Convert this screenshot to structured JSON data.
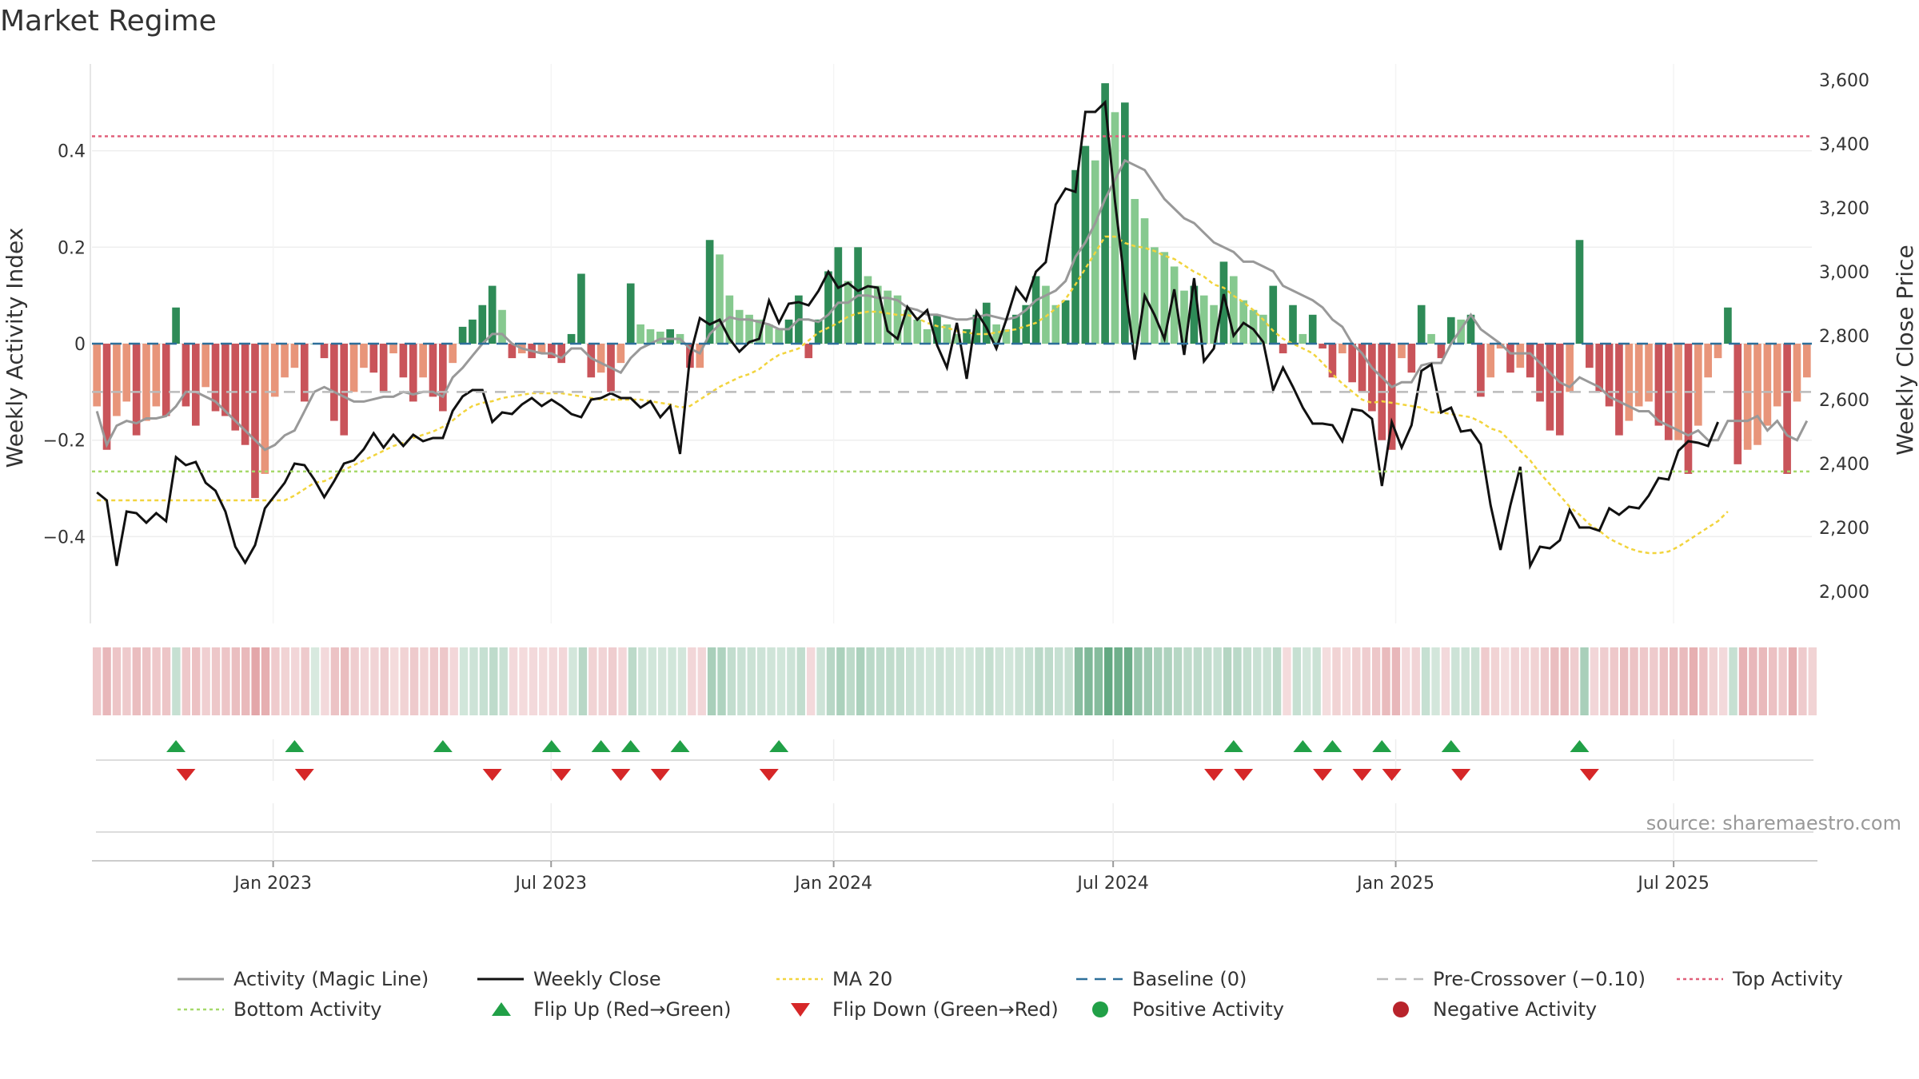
{
  "title": "Market Regime",
  "source": "source: sharemaestro.com",
  "colors": {
    "pos_dark": "#2e8b57",
    "pos_light": "#86c98f",
    "neg_dark": "#c9545a",
    "neg_light": "#e8957a",
    "magic": "#999999",
    "close": "#111111",
    "ma20": "#f2d43d",
    "baseline": "#2d6f9a",
    "pre": "#bbbbbb",
    "top": "#e0607a",
    "bottom": "#a6d96a",
    "flip_up": "#21a047",
    "flip_down": "#d62728"
  },
  "chart_data": {
    "type": "bar+line",
    "title": "Market Regime",
    "ylabel_left": "Weekly Activity Index",
    "ylabel_right": "Weekly Close Price",
    "ylim_left": [
      -0.58,
      0.58
    ],
    "ylim_right": [
      1900,
      3650
    ],
    "yticks_left": [
      {
        "v": 0.4,
        "label": "0.4"
      },
      {
        "v": 0.2,
        "label": "0.2"
      },
      {
        "v": 0,
        "label": "0"
      },
      {
        "v": -0.2,
        "label": "−0.2"
      },
      {
        "v": -0.4,
        "label": "−0.4"
      }
    ],
    "yticks_right": [
      {
        "v": 3600,
        "label": "3,600"
      },
      {
        "v": 3400,
        "label": "3,400"
      },
      {
        "v": 3200,
        "label": "3,200"
      },
      {
        "v": 3000,
        "label": "3,000"
      },
      {
        "v": 2800,
        "label": "2,800"
      },
      {
        "v": 2600,
        "label": "2,600"
      },
      {
        "v": 2400,
        "label": "2,400"
      },
      {
        "v": 2200,
        "label": "2,200"
      },
      {
        "v": 2000,
        "label": "2,000"
      }
    ],
    "x_start": "2022-09-05",
    "x_end": "2025-09-29",
    "xticks": [
      {
        "date": "2023-01-01",
        "label": "Jan 2023"
      },
      {
        "date": "2023-07-01",
        "label": "Jul 2023"
      },
      {
        "date": "2024-01-01",
        "label": "Jan 2024"
      },
      {
        "date": "2024-07-01",
        "label": "Jul 2024"
      },
      {
        "date": "2025-01-01",
        "label": "Jan 2025"
      },
      {
        "date": "2025-07-01",
        "label": "Jul 2025"
      }
    ],
    "reference_lines": {
      "top_activity": 0.43,
      "bottom_activity": -0.265,
      "pre_crossover": -0.1,
      "baseline": 0
    },
    "activity": [
      -0.13,
      -0.22,
      -0.15,
      -0.12,
      -0.19,
      -0.16,
      -0.13,
      -0.15,
      0.075,
      -0.13,
      -0.17,
      -0.09,
      -0.14,
      -0.15,
      -0.18,
      -0.21,
      -0.32,
      -0.27,
      -0.11,
      -0.07,
      -0.05,
      -0.12,
      0,
      -0.03,
      -0.16,
      -0.19,
      -0.1,
      -0.05,
      -0.06,
      -0.1,
      -0.02,
      -0.07,
      -0.12,
      -0.07,
      -0.11,
      -0.14,
      -0.04,
      0.035,
      0.05,
      0.08,
      0.12,
      0.07,
      -0.03,
      -0.02,
      -0.03,
      -0.02,
      -0.03,
      -0.04,
      0.02,
      0.145,
      -0.07,
      -0.06,
      -0.1,
      -0.04,
      0.125,
      0.04,
      0.03,
      0.025,
      0.03,
      0.02,
      -0.05,
      -0.05,
      0.215,
      0.185,
      0.1,
      0.07,
      0.06,
      0.05,
      0.04,
      0.03,
      0.05,
      0.1,
      -0.03,
      0.05,
      0.15,
      0.2,
      0.13,
      0.2,
      0.14,
      0.12,
      0.11,
      0.1,
      0.07,
      0.05,
      0.03,
      0.06,
      0.04,
      0.02,
      0.03,
      0.06,
      0.085,
      0.04,
      0.03,
      0.06,
      0.08,
      0.14,
      0.12,
      0.08,
      0.09,
      0.36,
      0.41,
      0.38,
      0.54,
      0.48,
      0.5,
      0.3,
      0.26,
      0.2,
      0.19,
      0.16,
      0.11,
      0.12,
      0.1,
      0.08,
      0.17,
      0.14,
      0.09,
      0.07,
      0.06,
      0.12,
      -0.02,
      0.08,
      0.02,
      0.06,
      -0.01,
      -0.07,
      -0.02,
      -0.08,
      -0.1,
      -0.14,
      -0.2,
      -0.22,
      -0.03,
      -0.06,
      0.08,
      0.02,
      -0.03,
      0.055,
      0.05,
      0.06,
      -0.11,
      -0.07,
      -0.01,
      -0.06,
      -0.05,
      -0.07,
      -0.12,
      -0.18,
      -0.19,
      -0.1,
      0.215,
      -0.05,
      -0.1,
      -0.13,
      -0.19,
      -0.16,
      -0.13,
      -0.12,
      -0.17,
      -0.2,
      -0.2,
      -0.27,
      -0.17,
      -0.07,
      -0.03,
      0.075,
      -0.25,
      -0.22,
      -0.21,
      -0.17,
      -0.13,
      -0.27,
      -0.12,
      -0.07
    ],
    "magic_line": [
      -0.14,
      -0.21,
      -0.17,
      -0.16,
      -0.165,
      -0.155,
      -0.155,
      -0.15,
      -0.13,
      -0.1,
      -0.1,
      -0.11,
      -0.12,
      -0.14,
      -0.16,
      -0.18,
      -0.2,
      -0.22,
      -0.21,
      -0.19,
      -0.18,
      -0.14,
      -0.1,
      -0.09,
      -0.1,
      -0.11,
      -0.12,
      -0.12,
      -0.115,
      -0.11,
      -0.11,
      -0.1,
      -0.105,
      -0.1,
      -0.1,
      -0.11,
      -0.07,
      -0.05,
      -0.025,
      0,
      0.02,
      0.02,
      0,
      -0.01,
      -0.015,
      -0.02,
      -0.02,
      -0.03,
      -0.01,
      -0.01,
      -0.03,
      -0.04,
      -0.05,
      -0.06,
      -0.03,
      -0.01,
      0,
      0.01,
      0.01,
      0.01,
      -0.01,
      -0.02,
      0.02,
      0.04,
      0.055,
      0.05,
      0.05,
      0.045,
      0.04,
      0.03,
      0.03,
      0.05,
      0.05,
      0.045,
      0.06,
      0.085,
      0.085,
      0.1,
      0.1,
      0.095,
      0.095,
      0.09,
      0.075,
      0.07,
      0.06,
      0.06,
      0.055,
      0.05,
      0.05,
      0.055,
      0.06,
      0.055,
      0.05,
      0.055,
      0.07,
      0.09,
      0.1,
      0.11,
      0.13,
      0.18,
      0.21,
      0.25,
      0.3,
      0.34,
      0.38,
      0.37,
      0.36,
      0.33,
      0.3,
      0.28,
      0.26,
      0.25,
      0.23,
      0.21,
      0.2,
      0.19,
      0.17,
      0.17,
      0.16,
      0.15,
      0.12,
      0.11,
      0.1,
      0.09,
      0.075,
      0.05,
      0.035,
      0,
      -0.02,
      -0.05,
      -0.07,
      -0.09,
      -0.08,
      -0.08,
      -0.045,
      -0.04,
      -0.04,
      0,
      0.03,
      0.06,
      0.03,
      0.015,
      0,
      -0.02,
      -0.02,
      -0.02,
      -0.04,
      -0.06,
      -0.08,
      -0.09,
      -0.07,
      -0.08,
      -0.09,
      -0.11,
      -0.12,
      -0.13,
      -0.14,
      -0.14,
      -0.16,
      -0.17,
      -0.18,
      -0.19,
      -0.18,
      -0.2,
      -0.2,
      -0.16,
      -0.16,
      -0.16,
      -0.15,
      -0.18,
      -0.16,
      -0.19,
      -0.2,
      -0.16
    ],
    "weekly_close": [
      2310,
      2285,
      2080,
      2250,
      2245,
      2215,
      2245,
      2220,
      2420,
      2395,
      2405,
      2340,
      2315,
      2250,
      2140,
      2090,
      2145,
      2260,
      2300,
      2340,
      2400,
      2395,
      2350,
      2295,
      2345,
      2400,
      2410,
      2445,
      2495,
      2450,
      2490,
      2455,
      2490,
      2470,
      2480,
      2480,
      2565,
      2610,
      2630,
      2630,
      2530,
      2560,
      2555,
      2585,
      2605,
      2580,
      2600,
      2580,
      2555,
      2545,
      2600,
      2605,
      2620,
      2605,
      2605,
      2575,
      2595,
      2545,
      2580,
      2430,
      2735,
      2855,
      2835,
      2850,
      2790,
      2750,
      2780,
      2790,
      2910,
      2840,
      2900,
      2905,
      2895,
      2940,
      3000,
      2950,
      2965,
      2940,
      2955,
      2950,
      2815,
      2790,
      2890,
      2850,
      2880,
      2770,
      2700,
      2840,
      2665,
      2875,
      2825,
      2760,
      2850,
      2950,
      2910,
      3000,
      3030,
      3210,
      3260,
      3250,
      3500,
      3500,
      3530,
      3220,
      2960,
      2725,
      2925,
      2865,
      2790,
      2945,
      2740,
      2980,
      2720,
      2760,
      2930,
      2800,
      2840,
      2820,
      2780,
      2630,
      2700,
      2640,
      2575,
      2525,
      2525,
      2520,
      2470,
      2570,
      2565,
      2540,
      2330,
      2530,
      2450,
      2520,
      2690,
      2710,
      2560,
      2575,
      2500,
      2505,
      2460,
      2270,
      2130,
      2270,
      2390,
      2080,
      2140,
      2135,
      2160,
      2255,
      2200,
      2200,
      2190,
      2260,
      2240,
      2265,
      2260,
      2300,
      2355,
      2350,
      2440,
      2470,
      2465,
      2455,
      2530
    ],
    "ma20": [
      2285,
      2285,
      2285,
      2285,
      2285,
      2285,
      2285,
      2285,
      2285,
      2285,
      2285,
      2285,
      2285,
      2285,
      2285,
      2285,
      2285,
      2285,
      2285,
      2285,
      2300,
      2320,
      2340,
      2345,
      2360,
      2380,
      2395,
      2410,
      2425,
      2440,
      2455,
      2465,
      2480,
      2490,
      2500,
      2515,
      2535,
      2560,
      2580,
      2590,
      2595,
      2605,
      2610,
      2615,
      2620,
      2620,
      2620,
      2620,
      2615,
      2610,
      2605,
      2600,
      2600,
      2600,
      2600,
      2600,
      2595,
      2590,
      2585,
      2575,
      2580,
      2600,
      2620,
      2640,
      2655,
      2670,
      2680,
      2695,
      2720,
      2740,
      2750,
      2760,
      2785,
      2810,
      2825,
      2840,
      2860,
      2870,
      2875,
      2875,
      2870,
      2865,
      2865,
      2855,
      2840,
      2830,
      2825,
      2815,
      2810,
      2805,
      2805,
      2810,
      2815,
      2820,
      2830,
      2840,
      2860,
      2885,
      2915,
      2960,
      3010,
      3060,
      3110,
      3110,
      3090,
      3080,
      3075,
      3065,
      3050,
      3040,
      3020,
      3000,
      2985,
      2960,
      2950,
      2925,
      2905,
      2880,
      2850,
      2815,
      2790,
      2775,
      2760,
      2745,
      2715,
      2680,
      2650,
      2625,
      2600,
      2590,
      2595,
      2590,
      2585,
      2580,
      2575,
      2560,
      2560,
      2555,
      2550,
      2545,
      2530,
      2510,
      2500,
      2470,
      2440,
      2410,
      2370,
      2335,
      2300,
      2265,
      2240,
      2210,
      2190,
      2165,
      2150,
      2135,
      2125,
      2120,
      2120,
      2125,
      2140,
      2160,
      2180,
      2200,
      2220,
      2250
    ],
    "flip_up_weeks": [
      8,
      20,
      35,
      46,
      51,
      54,
      59,
      69,
      115,
      122,
      125,
      130,
      137,
      150
    ],
    "flip_down_weeks": [
      9,
      21,
      40,
      47,
      53,
      57,
      68,
      113,
      116,
      124,
      128,
      131,
      138,
      151
    ]
  },
  "legend": [
    {
      "key": "magic",
      "label": "Activity (Magic Line)",
      "kind": "line"
    },
    {
      "key": "close",
      "label": "Weekly Close",
      "kind": "line"
    },
    {
      "key": "ma20",
      "label": "MA 20",
      "kind": "dotted"
    },
    {
      "key": "baseline",
      "label": "Baseline (0)",
      "kind": "dashed"
    },
    {
      "key": "pre",
      "label": "Pre-Crossover (−0.10)",
      "kind": "dashed"
    },
    {
      "key": "top",
      "label": "Top Activity",
      "kind": "dotted"
    },
    {
      "key": "bottom",
      "label": "Bottom Activity",
      "kind": "dotted"
    },
    {
      "key": "flip_up",
      "label": "Flip Up (Red→Green)",
      "kind": "tri-up"
    },
    {
      "key": "flip_down",
      "label": "Flip Down (Green→Red)",
      "kind": "tri-down"
    },
    {
      "key": "pos_dark",
      "label": "Positive Activity",
      "kind": "dot"
    },
    {
      "key": "neg_dark",
      "label": "Negative Activity",
      "kind": "dot"
    }
  ]
}
